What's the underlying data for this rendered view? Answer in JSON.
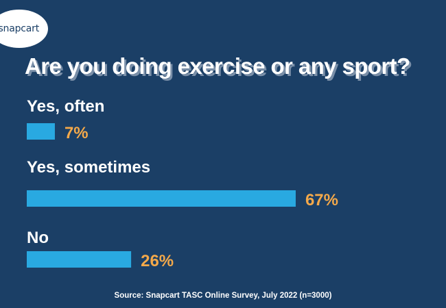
{
  "brand": {
    "logo_text": "snapcart"
  },
  "chart_data": {
    "type": "bar",
    "orientation": "horizontal",
    "title": "Are you doing exercise or any sport?",
    "categories": [
      "Yes, often",
      "Yes, sometimes",
      "No"
    ],
    "values": [
      7,
      67,
      26
    ],
    "value_labels": [
      "7%",
      "67%",
      "26%"
    ],
    "unit": "%",
    "xlim": [
      0,
      100
    ],
    "grid": false,
    "colors": {
      "bar": "#29a9e1",
      "value_label": "#f4a94a",
      "category_label": "#ffffff"
    }
  },
  "footer": {
    "source": "Source: Snapcart TASC Online Survey, July 2022 (n=3000)"
  }
}
